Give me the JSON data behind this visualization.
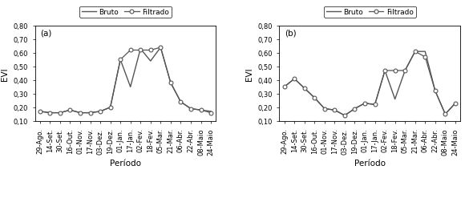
{
  "x_labels": [
    "29-Ago.",
    "14-Set.",
    "30-Set.",
    "16-Out.",
    "01-Nov.",
    "17-Nov.",
    "03-Dez.",
    "19-Dez.",
    "01-Jan.",
    "17-Jan.",
    "02-Fev.",
    "18-Fev.",
    "05-Mar.",
    "21-Mar.",
    "06-Abr.",
    "22-Abr.",
    "08-Maio",
    "24-Maio"
  ],
  "panel_a": {
    "bruto": [
      0.17,
      0.16,
      0.16,
      0.18,
      0.16,
      0.16,
      0.17,
      0.2,
      0.55,
      0.35,
      0.63,
      0.54,
      0.64,
      0.38,
      0.24,
      0.19,
      0.18,
      0.17
    ],
    "filtrado": [
      0.17,
      0.16,
      0.16,
      0.18,
      0.16,
      0.16,
      0.17,
      0.2,
      0.55,
      0.62,
      0.62,
      0.62,
      0.64,
      0.38,
      0.24,
      0.19,
      0.18,
      0.16
    ]
  },
  "panel_b": {
    "bruto": [
      0.35,
      0.41,
      0.34,
      0.27,
      0.19,
      0.18,
      0.14,
      0.19,
      0.23,
      0.22,
      0.47,
      0.26,
      0.47,
      0.61,
      0.61,
      0.32,
      0.15,
      0.23
    ],
    "filtrado": [
      0.35,
      0.41,
      0.34,
      0.27,
      0.19,
      0.18,
      0.14,
      0.19,
      0.23,
      0.22,
      0.47,
      0.47,
      0.47,
      0.61,
      0.57,
      0.32,
      0.15,
      0.23
    ]
  },
  "ylim": [
    0.1,
    0.8
  ],
  "yticks": [
    0.1,
    0.2,
    0.3,
    0.4,
    0.5,
    0.6,
    0.7,
    0.8
  ],
  "ylabel": "EVI",
  "xlabel": "Período",
  "line_color": "#555555",
  "marker": "o",
  "markersize": 3.5,
  "legend_bruto": "Bruto",
  "legend_filtrado": "Filtrado",
  "label_a": "(a)",
  "label_b": "(b)",
  "tick_fontsize": 6.0,
  "axis_label_fontsize": 7.5,
  "linewidth_bruto": 1.0,
  "linewidth_filtrado": 0.9
}
